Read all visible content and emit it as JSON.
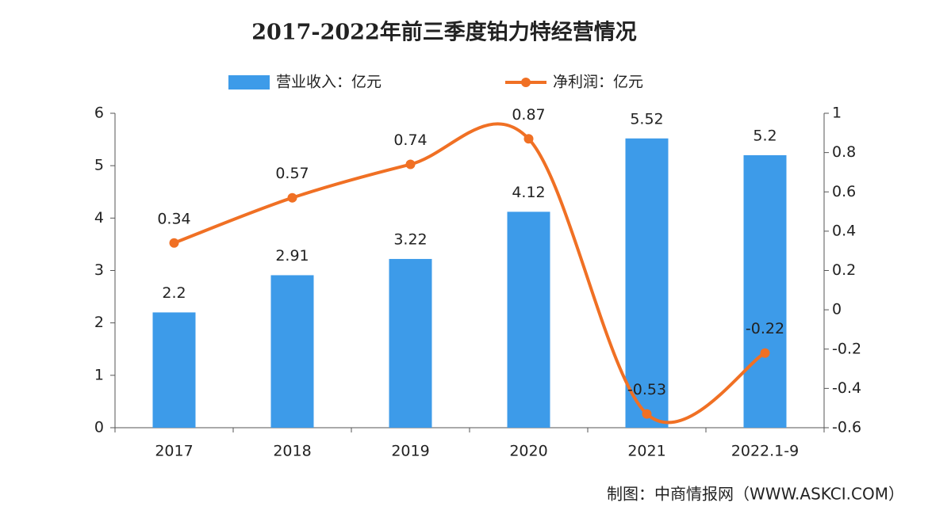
{
  "chart_data": {
    "type": "combo",
    "title": "2017-2022年前三季度铂力特经营情况",
    "categories": [
      "2017",
      "2018",
      "2019",
      "2020",
      "2021",
      "2022.1-9"
    ],
    "series": [
      {
        "name": "营业收入：亿元",
        "type": "bar",
        "color": "#3d9be9",
        "values": [
          2.2,
          2.91,
          3.22,
          4.12,
          5.52,
          5.2
        ]
      },
      {
        "name": "净利润：亿元",
        "type": "line",
        "axis": "y2",
        "color": "#f07024",
        "values": [
          0.34,
          0.57,
          0.74,
          0.87,
          -0.53,
          -0.22
        ]
      }
    ],
    "ylim": [
      0,
      6
    ],
    "yticks": [
      0,
      1,
      2,
      3,
      4,
      5,
      6
    ],
    "y2lim": [
      -0.6,
      1
    ],
    "y2ticks": [
      -0.6,
      -0.4,
      -0.2,
      0,
      0.2,
      0.4,
      0.6,
      0.8,
      1
    ],
    "grid": false,
    "legend": "top",
    "source": "制图：中商情报网（WWW.ASKCI.COM）"
  }
}
